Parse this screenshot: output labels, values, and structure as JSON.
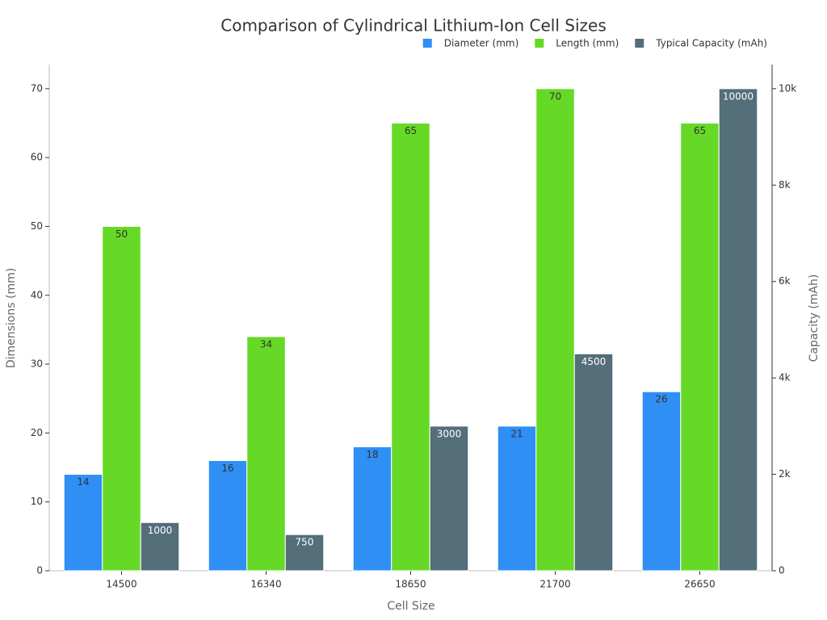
{
  "chart_data": {
    "type": "bar",
    "title": "Comparison of Cylindrical Lithium-Ion Cell Sizes",
    "x_label": "Cell Size",
    "y_label": "Dimensions (mm)",
    "y2_label": "Capacity (mAh)",
    "categories": [
      "14500",
      "16340",
      "18650",
      "21700",
      "26650"
    ],
    "series": [
      {
        "name": "Diameter (mm)",
        "color": "#2f8ff5",
        "values": [
          14,
          16,
          18,
          21,
          26
        ]
      },
      {
        "name": "Length (mm)",
        "color": "#66d926",
        "values": [
          50,
          34,
          65,
          70,
          65
        ]
      },
      {
        "name": "Typical Capacity (mAh)",
        "color": "#546e7a",
        "axis": "y2",
        "values": [
          1000,
          750,
          3000,
          4500,
          10000
        ]
      }
    ],
    "ylim": [
      0,
      73.5
    ],
    "yticks": [
      0,
      10,
      20,
      30,
      40,
      50,
      60,
      70
    ],
    "y2lim": [
      0,
      10500
    ],
    "y2ticks": [
      0,
      {
        "value": 2000,
        "label": "2k"
      },
      {
        "value": 4000,
        "label": "4k"
      },
      {
        "value": 6000,
        "label": "6k"
      },
      {
        "value": 8000,
        "label": "8k"
      },
      {
        "value": 10000,
        "label": "10k"
      }
    ],
    "legend": "top-right"
  }
}
